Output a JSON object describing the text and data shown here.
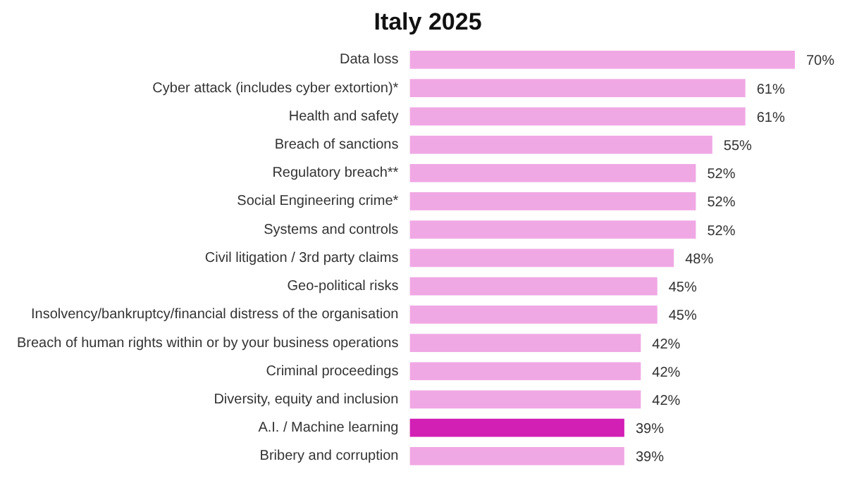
{
  "chart_data": {
    "type": "bar",
    "orientation": "horizontal",
    "title": "Italy 2025",
    "categories": [
      "Data loss",
      "Cyber attack (includes cyber extortion)*",
      "Health and safety",
      "Breach of sanctions",
      "Regulatory breach**",
      "Social Engineering crime*",
      "Systems and controls",
      "Civil litigation / 3rd party claims",
      "Geo-political risks",
      "Insolvency/bankruptcy/financial distress of the organisation",
      "Breach of human rights within or by your business operations",
      "Criminal proceedings",
      "Diversity, equity and inclusion",
      "A.I. / Machine learning",
      "Bribery and corruption"
    ],
    "values": [
      70,
      61,
      61,
      55,
      52,
      52,
      52,
      48,
      45,
      45,
      42,
      42,
      42,
      39,
      39
    ],
    "colors": [
      "#f0a8e4",
      "#f0a8e4",
      "#f0a8e4",
      "#f0a8e4",
      "#f0a8e4",
      "#f0a8e4",
      "#f0a8e4",
      "#f0a8e4",
      "#f0a8e4",
      "#f0a8e4",
      "#f0a8e4",
      "#f0a8e4",
      "#f0a8e4",
      "#d21fb4",
      "#f0a8e4"
    ],
    "value_labels": [
      "70%",
      "61%",
      "61%",
      "55%",
      "52%",
      "52%",
      "52%",
      "48%",
      "45%",
      "45%",
      "42%",
      "42%",
      "42%",
      "39%",
      "39%"
    ],
    "legend": false,
    "tick_labels": "y"
  }
}
